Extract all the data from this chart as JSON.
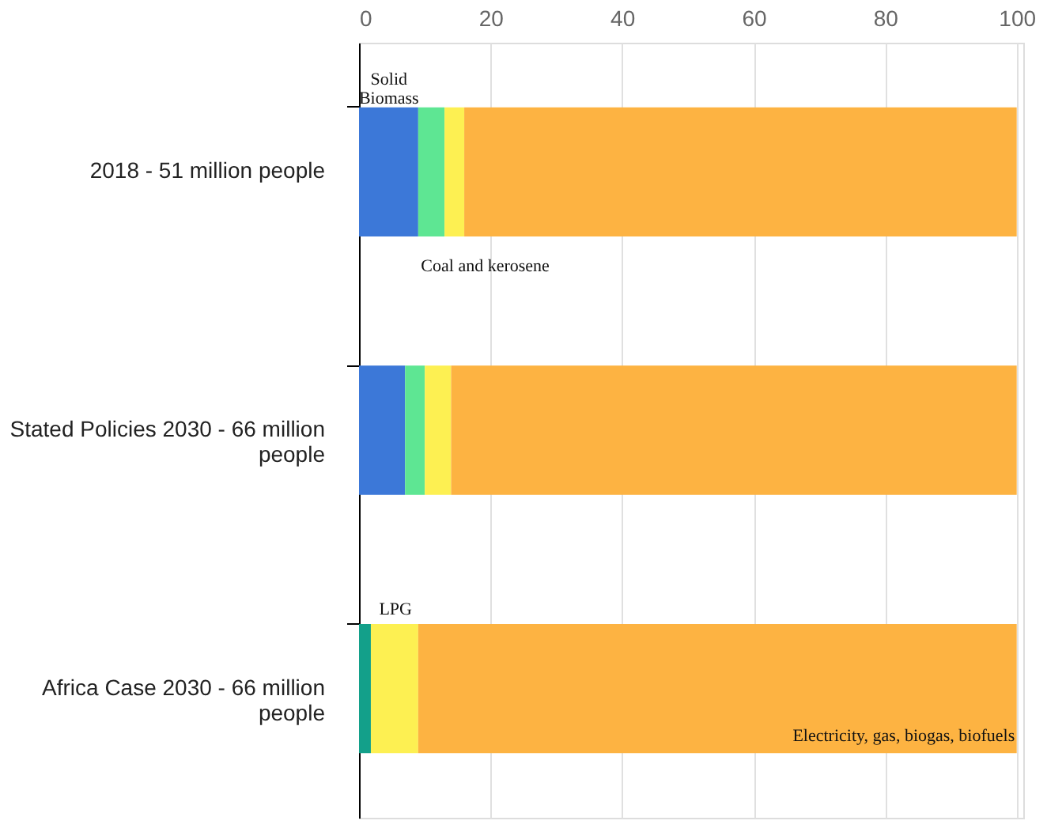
{
  "chart_data": {
    "type": "bar",
    "orientation": "horizontal",
    "stacked": true,
    "categories": [
      "2018 - 51 million people",
      "Stated Policies 2030 - 66 million people",
      "Africa Case 2030 - 66 million people"
    ],
    "series": [
      {
        "color": "#3c78d8",
        "values": [
          9,
          7,
          0
        ]
      },
      {
        "color": "#5ee693",
        "values": [
          4,
          3,
          0
        ]
      },
      {
        "color": "#13a08a",
        "values": [
          0,
          0,
          1.8
        ]
      },
      {
        "color": "#fdf052",
        "values": [
          3,
          4,
          7.2
        ]
      },
      {
        "color": "#fdb342",
        "values": [
          84,
          86,
          91
        ]
      }
    ],
    "xlim": [
      0,
      101
    ],
    "xticks": [
      0,
      20,
      40,
      60,
      80,
      100
    ],
    "grid": "x",
    "legend": false,
    "annotations": [
      "Solid Biomass",
      "Coal and kerosene",
      "LPG",
      "Electricity, gas, biogas, biofuels"
    ]
  }
}
